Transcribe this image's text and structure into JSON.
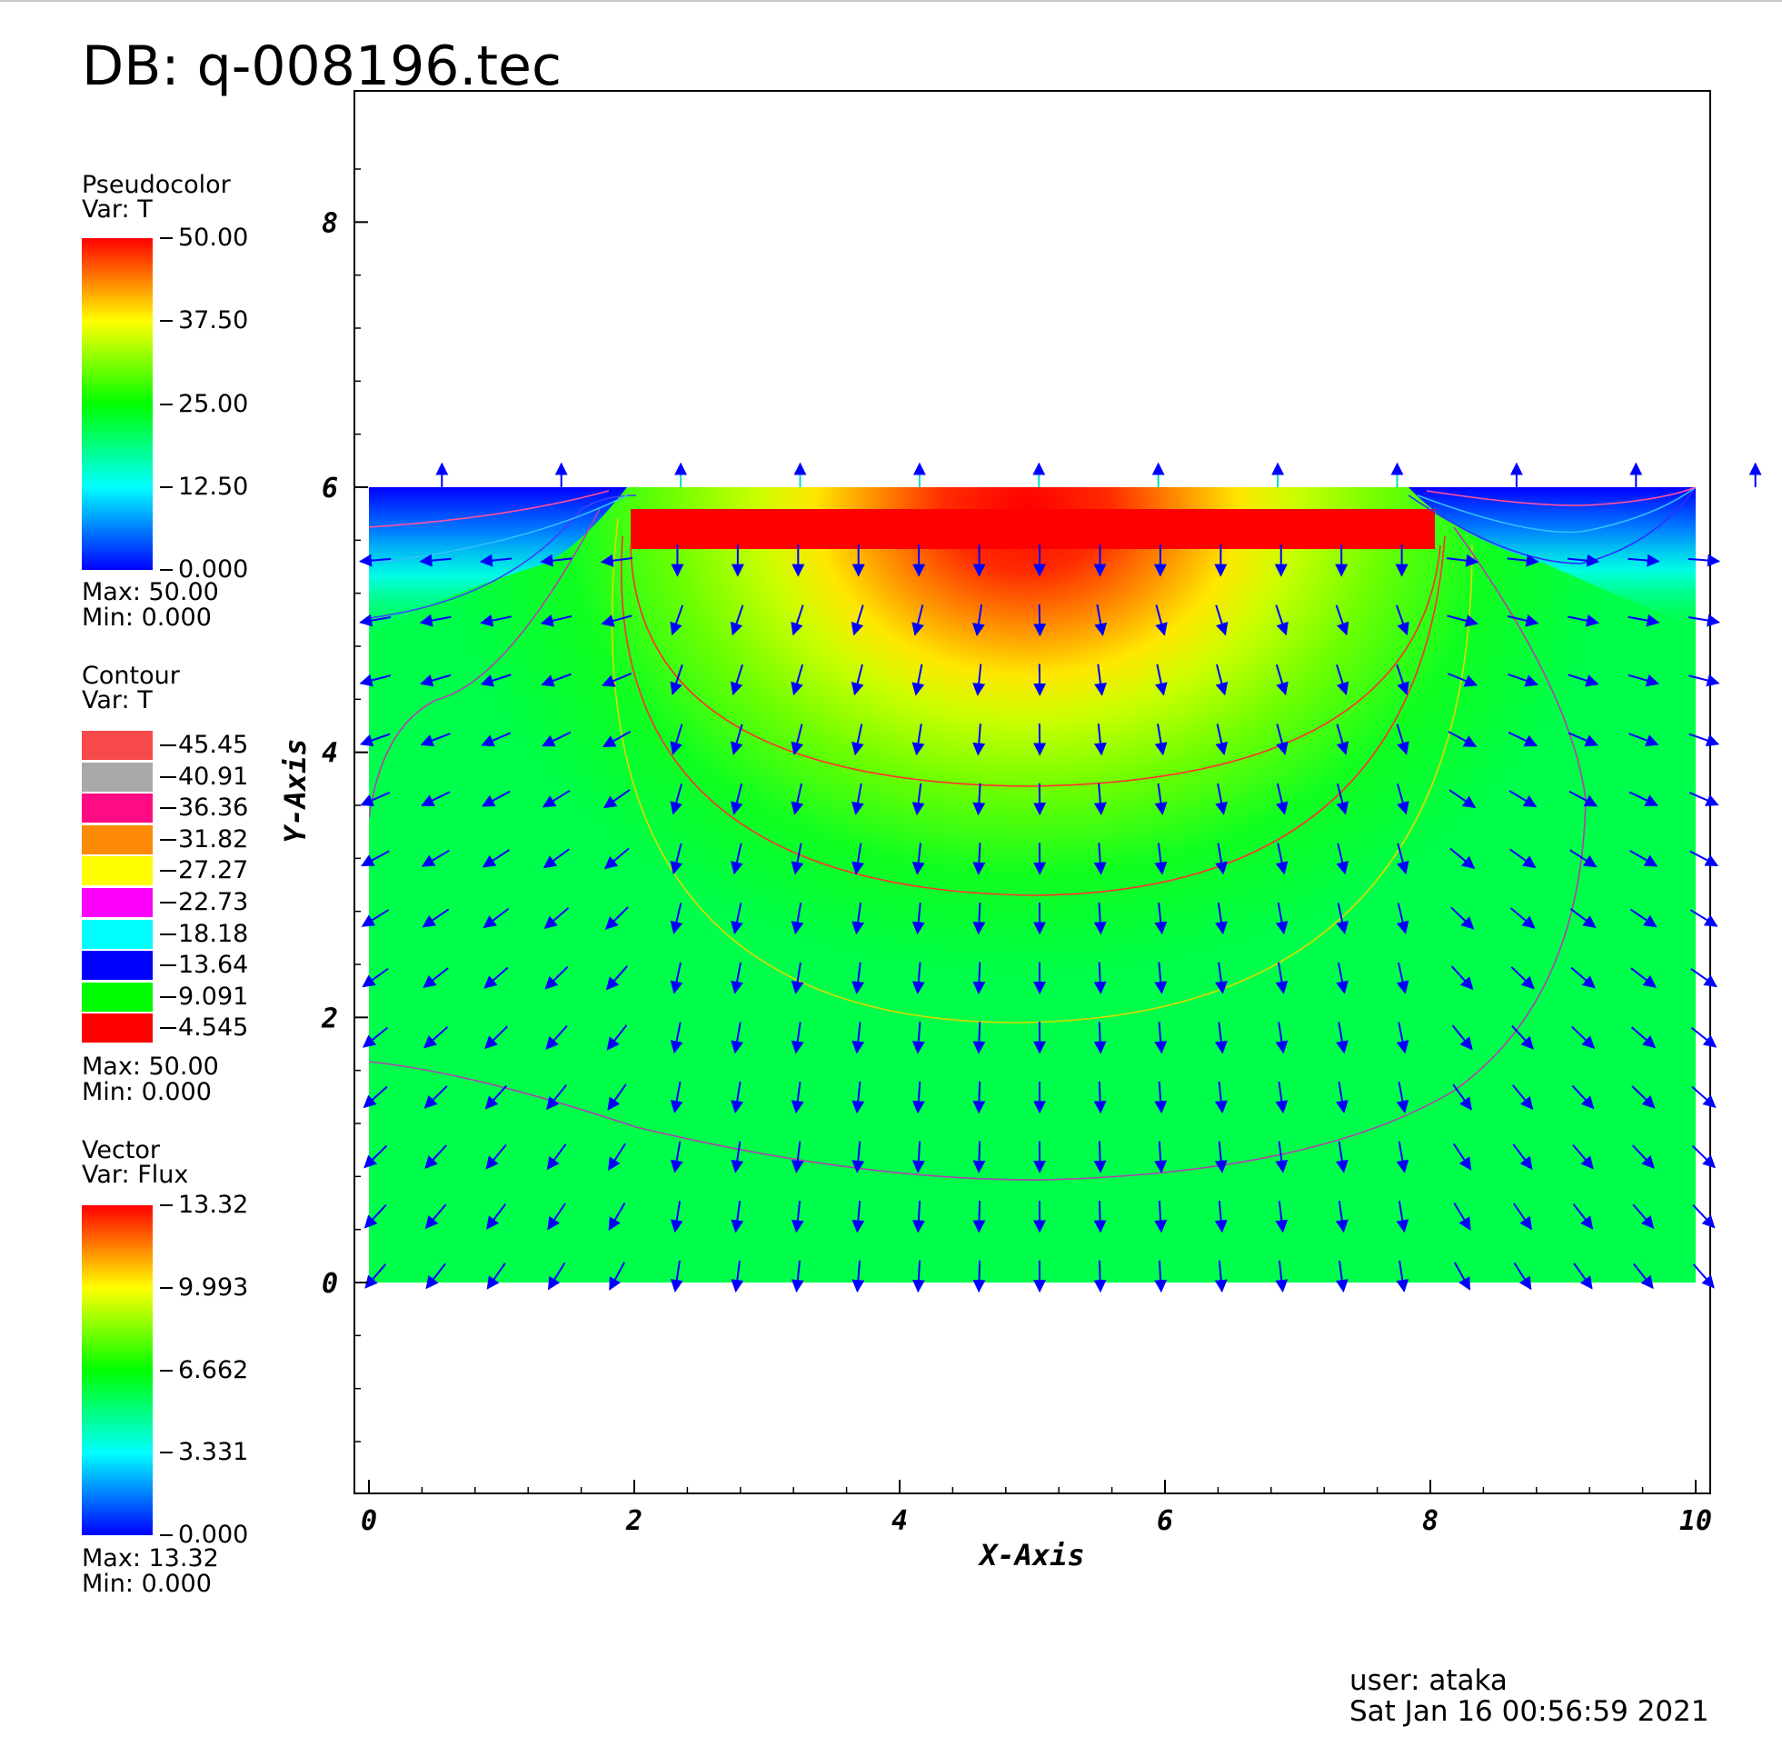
{
  "db_title": "DB: q-008196.tec",
  "legends": {
    "pseudocolor": {
      "title": "Pseudocolor",
      "var": "Var: T",
      "ticks": [
        "50.00",
        "37.50",
        "25.00",
        "12.50",
        "0.000"
      ],
      "max": "Max:  50.00",
      "min": "Min:  0.000"
    },
    "contour": {
      "title": "Contour",
      "var": "Var: T",
      "levels": [
        "45.45",
        "40.91",
        "36.36",
        "31.82",
        "27.27",
        "22.73",
        "18.18",
        "13.64",
        "9.091",
        "4.545"
      ],
      "colors": [
        "#f84a4a",
        "#a9a9a9",
        "#fd0c84",
        "#fd8a05",
        "#fefe00",
        "#fd00fd",
        "#00fefe",
        "#0000fd",
        "#00fe00",
        "#fe0000"
      ],
      "max": "Max:  50.00",
      "min": "Min:  0.000"
    },
    "vector": {
      "title": "Vector",
      "var": "Var: Flux",
      "ticks": [
        "13.32",
        "9.993",
        "6.662",
        "3.331",
        "0.000"
      ],
      "max": "Max:  13.32",
      "min": "Min:  0.000"
    }
  },
  "user_info": {
    "user": "user: ataka",
    "date": "Sat Jan 16 00:56:59 2021"
  },
  "chart_data": {
    "type": "heatmap",
    "variable": "T",
    "vector_variable": "Flux",
    "xlabel": "X-Axis",
    "ylabel": "Y-Axis",
    "xlim": [
      -0.1,
      10.1
    ],
    "ylim": [
      -1.6,
      8.9
    ],
    "xticks": [
      "0",
      "2",
      "4",
      "6",
      "8",
      "10"
    ],
    "yticks": [
      "0",
      "2",
      "4",
      "6",
      "8"
    ],
    "domain": {
      "x": [
        0,
        10
      ],
      "y": [
        0,
        6
      ]
    },
    "heat_source": {
      "x": [
        2,
        8
      ],
      "y": [
        5.8,
        5.95
      ],
      "value": 50
    },
    "value_range": [
      0,
      50
    ],
    "flux_range": [
      0,
      13.32
    ],
    "contour_levels": [
      45.45,
      40.91,
      36.36,
      31.82,
      27.27,
      22.73,
      18.18,
      13.64,
      9.091,
      4.545
    ],
    "grid": false
  }
}
